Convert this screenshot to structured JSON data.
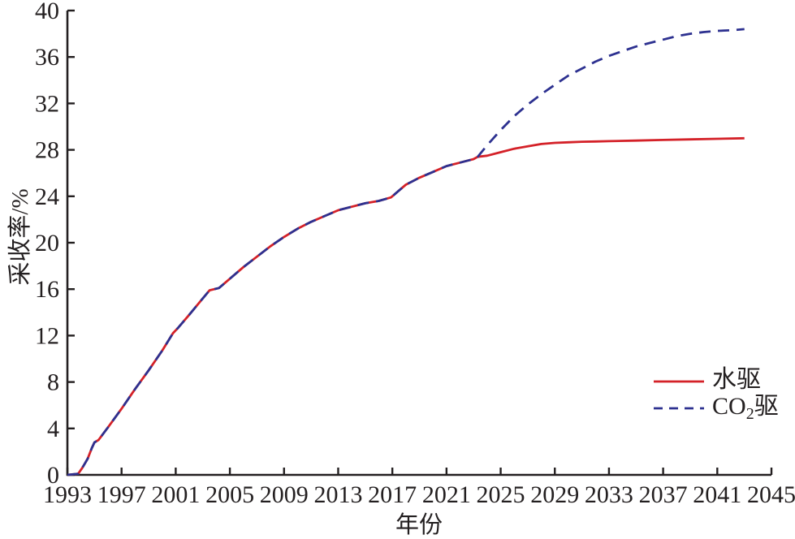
{
  "figure": {
    "background": "#ffffff",
    "text_color": "#231f20",
    "axis_color": "#231f20"
  },
  "chart_data": {
    "type": "line",
    "title": "",
    "xlabel": "年份",
    "ylabel": "采收率/%",
    "xlim": [
      1993,
      2045
    ],
    "ylim": [
      0,
      40
    ],
    "x_ticks": [
      1993,
      1997,
      2001,
      2005,
      2009,
      2013,
      2017,
      2021,
      2025,
      2029,
      2033,
      2037,
      2041,
      2045
    ],
    "y_ticks": [
      0,
      4,
      8,
      12,
      16,
      20,
      24,
      28,
      32,
      36,
      40
    ],
    "grid": false,
    "legend_position": "lower-right",
    "series": [
      {
        "name": "水驱",
        "color": "#d42128",
        "style": "solid",
        "points": [
          [
            1993.0,
            0.0
          ],
          [
            1993.8,
            0.1
          ],
          [
            1994.1,
            0.6
          ],
          [
            1994.3,
            1.0
          ],
          [
            1994.5,
            1.4
          ],
          [
            1994.8,
            2.3
          ],
          [
            1995.0,
            2.8
          ],
          [
            1995.3,
            3.0
          ],
          [
            1996.0,
            4.1
          ],
          [
            1997.0,
            5.7
          ],
          [
            1998.0,
            7.4
          ],
          [
            1999.0,
            9.0
          ],
          [
            2000.0,
            10.7
          ],
          [
            2000.8,
            12.2
          ],
          [
            2001.2,
            12.7
          ],
          [
            2002.0,
            13.8
          ],
          [
            2003.0,
            15.2
          ],
          [
            2003.5,
            15.9
          ],
          [
            2004.2,
            16.1
          ],
          [
            2005.0,
            16.9
          ],
          [
            2006.0,
            17.9
          ],
          [
            2007.0,
            18.8
          ],
          [
            2008.0,
            19.7
          ],
          [
            2009.0,
            20.5
          ],
          [
            2010.0,
            21.2
          ],
          [
            2011.0,
            21.8
          ],
          [
            2012.0,
            22.3
          ],
          [
            2013.0,
            22.8
          ],
          [
            2014.0,
            23.1
          ],
          [
            2015.0,
            23.4
          ],
          [
            2016.0,
            23.6
          ],
          [
            2016.9,
            23.9
          ],
          [
            2017.5,
            24.5
          ],
          [
            2018.0,
            25.0
          ],
          [
            2019.0,
            25.6
          ],
          [
            2020.0,
            26.1
          ],
          [
            2021.0,
            26.6
          ],
          [
            2022.0,
            26.9
          ],
          [
            2023.0,
            27.2
          ],
          [
            2023.3,
            27.4
          ],
          [
            2024.0,
            27.5
          ],
          [
            2025.0,
            27.8
          ],
          [
            2026.0,
            28.1
          ],
          [
            2027.0,
            28.3
          ],
          [
            2028.0,
            28.5
          ],
          [
            2029.0,
            28.6
          ],
          [
            2030.0,
            28.65
          ],
          [
            2031.0,
            28.7
          ],
          [
            2032.0,
            28.72
          ],
          [
            2033.0,
            28.75
          ],
          [
            2035.0,
            28.8
          ],
          [
            2037.0,
            28.85
          ],
          [
            2039.0,
            28.9
          ],
          [
            2041.0,
            28.95
          ],
          [
            2043.0,
            29.0
          ]
        ]
      },
      {
        "name": "CO2驱",
        "color": "#2d3190",
        "style": "dashed",
        "points": [
          [
            1993.0,
            0.0
          ],
          [
            1993.8,
            0.1
          ],
          [
            1994.1,
            0.6
          ],
          [
            1994.3,
            1.0
          ],
          [
            1994.5,
            1.4
          ],
          [
            1994.8,
            2.3
          ],
          [
            1995.0,
            2.8
          ],
          [
            1995.3,
            3.0
          ],
          [
            1996.0,
            4.1
          ],
          [
            1997.0,
            5.7
          ],
          [
            1998.0,
            7.4
          ],
          [
            1999.0,
            9.0
          ],
          [
            2000.0,
            10.7
          ],
          [
            2000.8,
            12.2
          ],
          [
            2001.2,
            12.7
          ],
          [
            2002.0,
            13.8
          ],
          [
            2003.0,
            15.2
          ],
          [
            2003.5,
            15.9
          ],
          [
            2004.2,
            16.1
          ],
          [
            2005.0,
            16.9
          ],
          [
            2006.0,
            17.9
          ],
          [
            2007.0,
            18.8
          ],
          [
            2008.0,
            19.7
          ],
          [
            2009.0,
            20.5
          ],
          [
            2010.0,
            21.2
          ],
          [
            2011.0,
            21.8
          ],
          [
            2012.0,
            22.3
          ],
          [
            2013.0,
            22.8
          ],
          [
            2014.0,
            23.1
          ],
          [
            2015.0,
            23.4
          ],
          [
            2016.0,
            23.6
          ],
          [
            2016.9,
            23.9
          ],
          [
            2017.5,
            24.5
          ],
          [
            2018.0,
            25.0
          ],
          [
            2019.0,
            25.6
          ],
          [
            2020.0,
            26.1
          ],
          [
            2021.0,
            26.6
          ],
          [
            2022.0,
            26.9
          ],
          [
            2023.0,
            27.2
          ],
          [
            2023.3,
            27.4
          ],
          [
            2024.0,
            28.4
          ],
          [
            2025.0,
            29.7
          ],
          [
            2026.0,
            30.9
          ],
          [
            2027.0,
            31.9
          ],
          [
            2028.0,
            32.8
          ],
          [
            2029.0,
            33.6
          ],
          [
            2030.0,
            34.4
          ],
          [
            2031.0,
            35.0
          ],
          [
            2032.0,
            35.6
          ],
          [
            2033.0,
            36.1
          ],
          [
            2034.0,
            36.5
          ],
          [
            2035.0,
            36.9
          ],
          [
            2036.0,
            37.2
          ],
          [
            2037.0,
            37.5
          ],
          [
            2038.0,
            37.8
          ],
          [
            2039.0,
            38.0
          ],
          [
            2040.0,
            38.15
          ],
          [
            2041.0,
            38.25
          ],
          [
            2042.0,
            38.3
          ],
          [
            2043.0,
            38.4
          ]
        ]
      }
    ]
  },
  "legend": {
    "items": [
      {
        "parts": {
          "pre": "水驱",
          "sub": "",
          "post": ""
        }
      },
      {
        "parts": {
          "pre": "CO",
          "sub": "2",
          "post": "驱"
        }
      }
    ]
  }
}
